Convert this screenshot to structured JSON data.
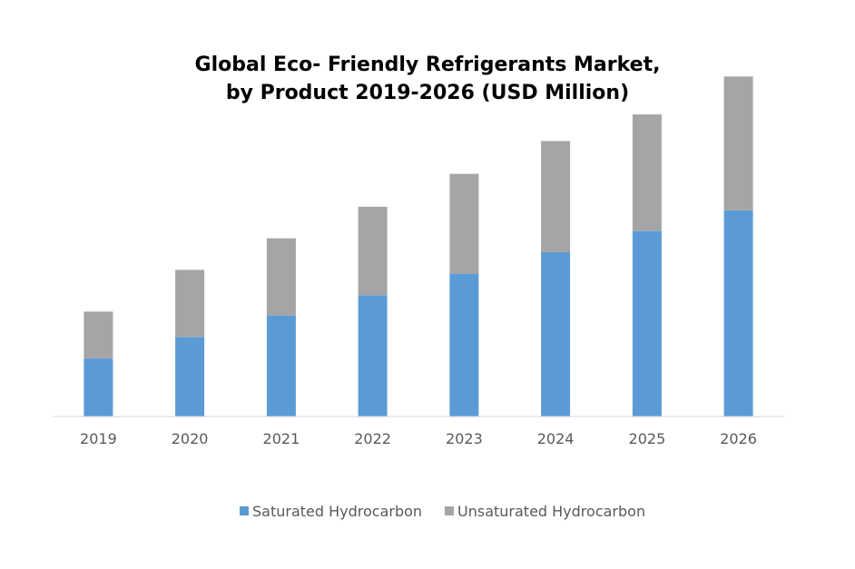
{
  "chart_data": {
    "type": "bar",
    "stacked": true,
    "title": "Global Eco- Friendly Refrigerants Market,\nby Product  2019-2026 (USD Million)",
    "title_lines": [
      "Global Eco- Friendly Refrigerants Market,",
      "by Product  2019-2026 (USD Million)"
    ],
    "categories": [
      "2019",
      "2020",
      "2021",
      "2022",
      "2023",
      "2024",
      "2025",
      "2026"
    ],
    "series": [
      {
        "name": "Saturated Hydrocarbon",
        "color": "#5B9BD5",
        "values": [
          46,
          63,
          80,
          96,
          113,
          130,
          147,
          163
        ]
      },
      {
        "name": "Unsaturated Hydrocarbon",
        "color": "#A5A5A5",
        "values": [
          37,
          53,
          61,
          70,
          79,
          88,
          92,
          106
        ]
      }
    ],
    "xlabel": "",
    "ylabel": "",
    "ylim": [
      0,
      280
    ],
    "y_axis_visible": false,
    "grid": false,
    "legend": "bottom"
  }
}
